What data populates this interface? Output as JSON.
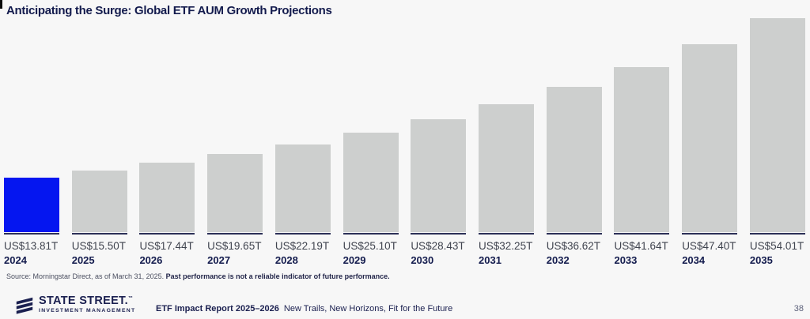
{
  "page": {
    "background": "#f7f7f7"
  },
  "chart_data": {
    "type": "bar",
    "title": "Anticipating the Surge: Global ETF AUM Growth Projections",
    "categories": [
      "2024",
      "2025",
      "2026",
      "2027",
      "2028",
      "2029",
      "2030",
      "2031",
      "2032",
      "2033",
      "2034",
      "2035"
    ],
    "values": [
      13.81,
      15.5,
      17.44,
      19.65,
      22.19,
      25.1,
      28.43,
      32.25,
      36.62,
      41.64,
      47.4,
      54.01
    ],
    "value_labels": [
      "US$13.81T",
      "US$15.50T",
      "US$17.44T",
      "US$19.65T",
      "US$22.19T",
      "US$25.10T",
      "US$28.43T",
      "US$32.25T",
      "US$36.62T",
      "US$41.64T",
      "US$47.40T",
      "US$54.01T"
    ],
    "ylim": [
      0,
      54.01
    ],
    "highlight_index": 0,
    "grid": false,
    "legend": "none",
    "colors": {
      "bar_default": "#cdcfce",
      "bar_highlight": "#0516f0",
      "baseline": "#2c3058",
      "title": "#131b4d"
    }
  },
  "source_note": {
    "regular": "Source: Morningstar Direct, as of March 31, 2025. ",
    "bold": "Past performance is not a reliable indicator of future performance."
  },
  "footer": {
    "brand_name": "STATE STREET.",
    "trademark": "™",
    "brand_subtitle": "INVESTMENT MANAGEMENT",
    "report_title_bold": "ETF Impact Report 2025–2026",
    "report_subtitle": "New Trails, New Horizons, Fit for the Future",
    "page_number": "38"
  }
}
